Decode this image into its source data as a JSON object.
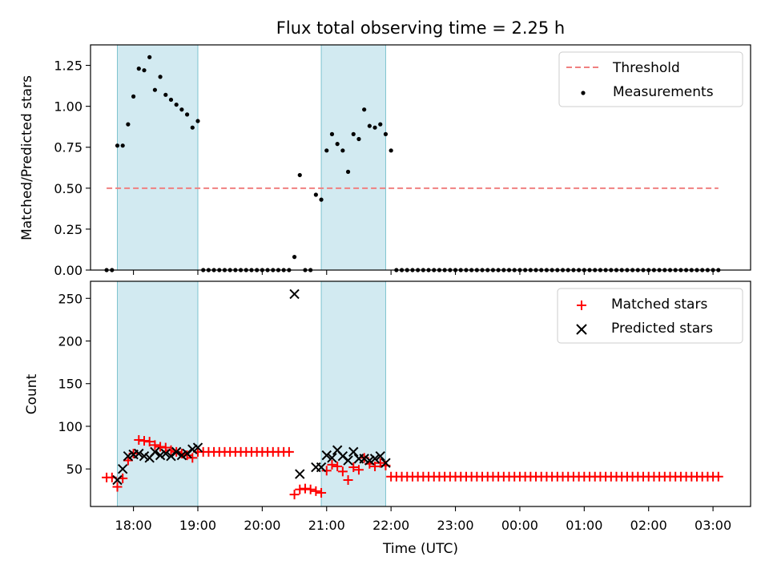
{
  "figure": {
    "title": "Flux total observing time = 2.25 h"
  },
  "colors": {
    "shade": "#add8e6",
    "threshold": "#f08080",
    "measurement": "#000000",
    "matched": "#ff0000",
    "predicted": "#000000"
  },
  "chart_data": [
    {
      "type": "scatter",
      "title": "Flux total observing time = 2.25 h",
      "xlabel": "",
      "ylabel": "Matched/Predicted stars",
      "ylim": [
        0,
        1.375
      ],
      "yticks": [
        "0.00",
        "0.25",
        "0.50",
        "0.75",
        "1.00",
        "1.25"
      ],
      "xlim": [
        "17:20",
        "03:35"
      ],
      "shaded_intervals": [
        [
          "17:45",
          "19:00"
        ],
        [
          "20:55",
          "21:55"
        ]
      ],
      "legend": "top-right",
      "threshold": {
        "name": "Threshold",
        "y": 0.5,
        "x_range": [
          "17:35",
          "03:05"
        ]
      },
      "series": [
        {
          "name": "Measurements",
          "time": [
            "17:35",
            "17:40",
            "17:45",
            "17:50",
            "17:55",
            "18:00",
            "18:05",
            "18:10",
            "18:15",
            "18:20",
            "18:25",
            "18:30",
            "18:35",
            "18:40",
            "18:45",
            "18:50",
            "18:55",
            "19:00",
            "19:05",
            "19:10",
            "19:15",
            "19:20",
            "19:25",
            "19:30",
            "19:35",
            "19:40",
            "19:45",
            "19:50",
            "19:55",
            "20:00",
            "20:05",
            "20:10",
            "20:15",
            "20:20",
            "20:25",
            "20:30",
            "20:35",
            "20:40",
            "20:45",
            "20:50",
            "20:55",
            "21:00",
            "21:05",
            "21:10",
            "21:15",
            "21:20",
            "21:25",
            "21:30",
            "21:35",
            "21:40",
            "21:45",
            "21:50",
            "21:55",
            "22:00",
            "22:05",
            "22:10",
            "22:15",
            "22:20",
            "22:25",
            "22:30",
            "22:35",
            "22:40",
            "22:45",
            "22:50",
            "22:55",
            "23:00",
            "23:05",
            "23:10",
            "23:15",
            "23:20",
            "23:25",
            "23:30",
            "23:35",
            "23:40",
            "23:45",
            "23:50",
            "23:55",
            "00:00",
            "00:05",
            "00:10",
            "00:15",
            "00:20",
            "00:25",
            "00:30",
            "00:35",
            "00:40",
            "00:45",
            "00:50",
            "00:55",
            "01:00",
            "01:05",
            "01:10",
            "01:15",
            "01:20",
            "01:25",
            "01:30",
            "01:35",
            "01:40",
            "01:45",
            "01:50",
            "01:55",
            "02:00",
            "02:05",
            "02:10",
            "02:15",
            "02:20",
            "02:25",
            "02:30",
            "02:35",
            "02:40",
            "02:45",
            "02:50",
            "02:55",
            "03:00",
            "03:05"
          ],
          "values": [
            0,
            0,
            0.76,
            0.76,
            0.89,
            1.06,
            1.23,
            1.22,
            1.3,
            1.1,
            1.18,
            1.07,
            1.04,
            1.01,
            0.98,
            0.95,
            0.87,
            0.91,
            0,
            0,
            0,
            0,
            0,
            0,
            0,
            0,
            0,
            0,
            0,
            0,
            0,
            0,
            0,
            0,
            0,
            0.08,
            0.58,
            0,
            0,
            0.46,
            0.43,
            0.73,
            0.83,
            0.77,
            0.73,
            0.6,
            0.83,
            0.8,
            0.98,
            0.88,
            0.87,
            0.89,
            0.83,
            0.73,
            0,
            0,
            0,
            0,
            0,
            0,
            0,
            0,
            0,
            0,
            0,
            0,
            0,
            0,
            0,
            0,
            0,
            0,
            0,
            0,
            0,
            0,
            0,
            0,
            0,
            0,
            0,
            0,
            0,
            0,
            0,
            0,
            0,
            0,
            0,
            0,
            0,
            0,
            0,
            0,
            0,
            0,
            0,
            0,
            0,
            0,
            0,
            0,
            0,
            0,
            0,
            0,
            0,
            0,
            0,
            0,
            0,
            0,
            0,
            0,
            0
          ]
        }
      ]
    },
    {
      "type": "scatter",
      "title": "",
      "xlabel": "Time (UTC)",
      "ylabel": "Count",
      "ylim": [
        6,
        270
      ],
      "yticks": [
        "50",
        "100",
        "150",
        "200",
        "250"
      ],
      "xticks": [
        "18:00",
        "19:00",
        "20:00",
        "21:00",
        "22:00",
        "23:00",
        "00:00",
        "01:00",
        "02:00",
        "03:00"
      ],
      "xlim": [
        "17:20",
        "03:35"
      ],
      "shaded_intervals": [
        [
          "17:45",
          "19:00"
        ],
        [
          "20:55",
          "21:55"
        ]
      ],
      "legend": "top-right",
      "series": [
        {
          "name": "Matched stars",
          "marker": "+",
          "time": [
            "17:35",
            "17:40",
            "17:45",
            "17:50",
            "17:55",
            "18:00",
            "18:05",
            "18:10",
            "18:15",
            "18:20",
            "18:25",
            "18:30",
            "18:35",
            "18:40",
            "18:45",
            "18:50",
            "18:55",
            "19:00",
            "19:05",
            "19:10",
            "19:15",
            "19:20",
            "19:25",
            "19:30",
            "19:35",
            "19:40",
            "19:45",
            "19:50",
            "19:55",
            "20:00",
            "20:05",
            "20:10",
            "20:15",
            "20:20",
            "20:25",
            "20:30",
            "20:35",
            "20:40",
            "20:45",
            "20:50",
            "20:55",
            "21:00",
            "21:05",
            "21:10",
            "21:15",
            "21:20",
            "21:25",
            "21:30",
            "21:35",
            "21:40",
            "21:45",
            "21:50",
            "21:55",
            "22:00",
            "22:05",
            "22:10",
            "22:15",
            "22:20",
            "22:25",
            "22:30",
            "22:35",
            "22:40",
            "22:45",
            "22:50",
            "22:55",
            "23:00",
            "23:05",
            "23:10",
            "23:15",
            "23:20",
            "23:25",
            "23:30",
            "23:35",
            "23:40",
            "23:45",
            "23:50",
            "23:55",
            "00:00",
            "00:05",
            "00:10",
            "00:15",
            "00:20",
            "00:25",
            "00:30",
            "00:35",
            "00:40",
            "00:45",
            "00:50",
            "00:55",
            "01:00",
            "01:05",
            "01:10",
            "01:15",
            "01:20",
            "01:25",
            "01:30",
            "01:35",
            "01:40",
            "01:45",
            "01:50",
            "01:55",
            "02:00",
            "02:05",
            "02:10",
            "02:15",
            "02:20",
            "02:25",
            "02:30",
            "02:35",
            "02:40",
            "02:45",
            "02:50",
            "02:55",
            "03:00",
            "03:05"
          ],
          "values": [
            40,
            40,
            29,
            39,
            60,
            68,
            84,
            83,
            82,
            78,
            76,
            75,
            72,
            70,
            68,
            66,
            63,
            70,
            70,
            70,
            70,
            70,
            70,
            70,
            70,
            70,
            70,
            70,
            70,
            70,
            70,
            70,
            70,
            70,
            70,
            20,
            26,
            27,
            26,
            24,
            22,
            48,
            55,
            53,
            47,
            37,
            52,
            49,
            63,
            56,
            53,
            57,
            54,
            41,
            41,
            41,
            41,
            41,
            41,
            41,
            41,
            41,
            41,
            41,
            41,
            41,
            41,
            41,
            41,
            41,
            41,
            41,
            41,
            41,
            41,
            41,
            41,
            41,
            41,
            41,
            41,
            41,
            41,
            41,
            41,
            41,
            41,
            41,
            41,
            41,
            41,
            41,
            41,
            41,
            41,
            41,
            41,
            41,
            41,
            41,
            41,
            41,
            41,
            41,
            41,
            41,
            41,
            41,
            41,
            41,
            41,
            41,
            41,
            41,
            41
          ]
        },
        {
          "name": "Predicted stars",
          "marker": "x",
          "time": [
            "17:45",
            "17:50",
            "17:55",
            "18:00",
            "18:05",
            "18:10",
            "18:15",
            "18:20",
            "18:25",
            "18:30",
            "18:35",
            "18:40",
            "18:45",
            "18:50",
            "18:55",
            "19:00",
            "20:30",
            "20:35",
            "20:50",
            "20:55",
            "21:00",
            "21:05",
            "21:10",
            "21:15",
            "21:20",
            "21:25",
            "21:30",
            "21:35",
            "21:40",
            "21:45",
            "21:50",
            "21:55"
          ],
          "values": [
            37,
            50,
            65,
            67,
            68,
            65,
            63,
            70,
            66,
            68,
            65,
            70,
            66,
            68,
            73,
            75,
            255,
            44,
            52,
            52,
            66,
            63,
            72,
            65,
            60,
            70,
            62,
            62,
            60,
            62,
            65,
            57
          ]
        }
      ]
    }
  ]
}
